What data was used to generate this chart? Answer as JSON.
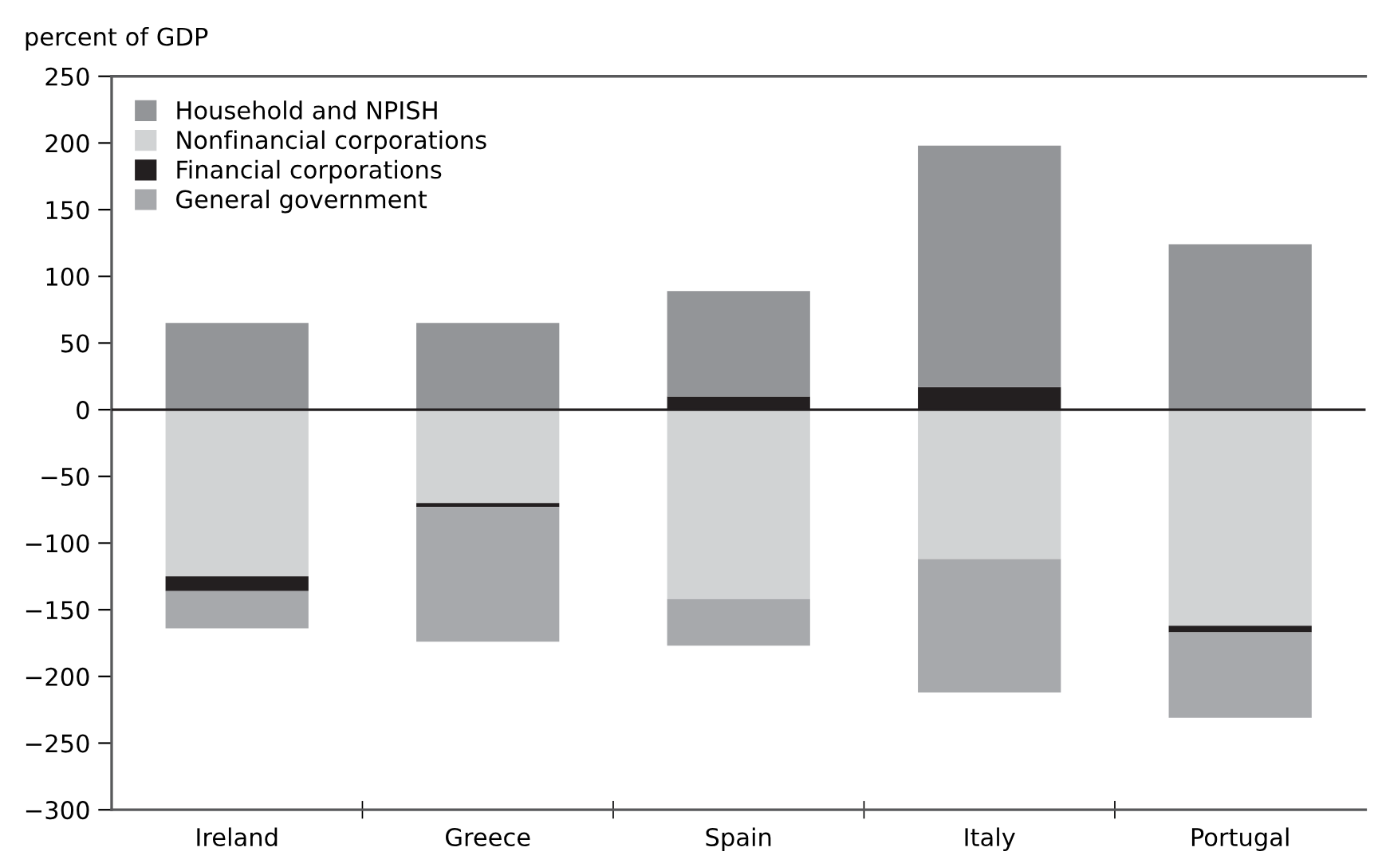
{
  "chart_data": {
    "type": "bar",
    "stacked": true,
    "ylabel": "percent of GDP",
    "categories": [
      "Ireland",
      "Greece",
      "Spain",
      "Italy",
      "Portugal"
    ],
    "series": [
      {
        "name": "Nonfinancial corporations",
        "color": "#d1d3d4",
        "values": [
          -125,
          -70,
          -142,
          -112,
          -162
        ]
      },
      {
        "name": "Financial corporations",
        "color": "#231f20",
        "values": [
          -11,
          -3,
          10,
          17,
          -5
        ]
      },
      {
        "name": "Household and NPISH",
        "color": "#939598",
        "values": [
          65,
          65,
          79,
          181,
          124
        ]
      },
      {
        "name": "General government",
        "color": "#a7a9ac",
        "values": [
          -28,
          -101,
          -35,
          -100,
          -64
        ]
      }
    ],
    "ylim": [
      -300,
      250
    ],
    "yticks": [
      {
        "value": -300,
        "label": "−300"
      },
      {
        "value": -250,
        "label": "−250"
      },
      {
        "value": -200,
        "label": "−200"
      },
      {
        "value": -150,
        "label": "−150"
      },
      {
        "value": -100,
        "label": "−100"
      },
      {
        "value": -50,
        "label": "−50"
      },
      0,
      50,
      100,
      150,
      200,
      250
    ],
    "ref_lines": [
      {
        "axis": "y",
        "value": 0,
        "color": "#231f20"
      }
    ],
    "grid": false,
    "legend": "top left"
  }
}
